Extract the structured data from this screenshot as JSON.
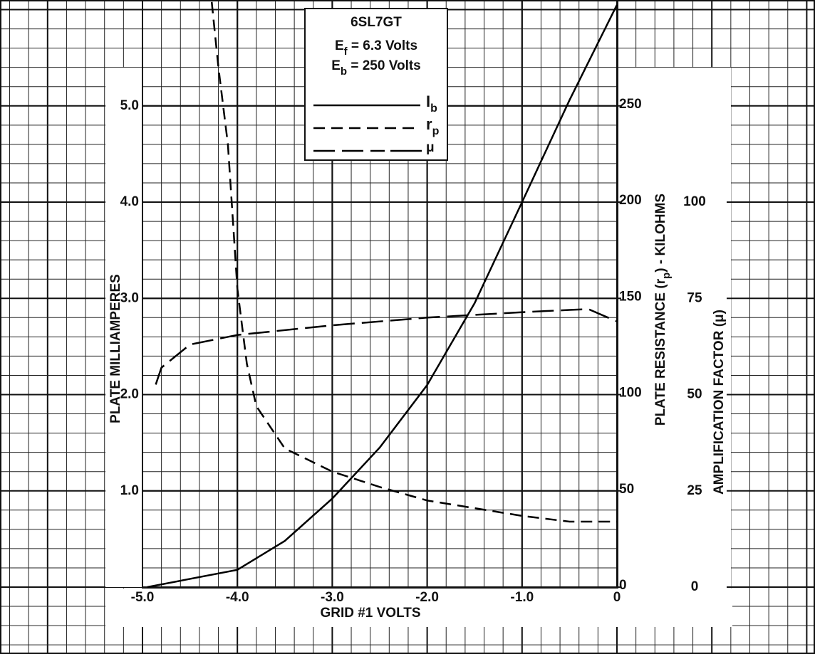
{
  "chart_data": {
    "type": "line",
    "title": "6SL7GT",
    "subtitle": [
      {
        "text": "E",
        "sub": "f",
        "rest": " = 6.3 Volts"
      },
      {
        "text": "E",
        "sub": "b",
        "rest": " = 250 Volts"
      }
    ],
    "x_label": "GRID #1 VOLTS",
    "y_label": "PLATE MILLIAMPERES",
    "y2_label": {
      "text": "PLATE RESISTANCE (r",
      "sub": "p",
      "rest": ") - KILOHMS"
    },
    "y3_label": "AMPLIFICATION FACTOR (μ)",
    "xlim": [
      -5,
      0
    ],
    "xticks": [
      {
        "value": -5,
        "label": "-5.0"
      },
      {
        "value": -4,
        "label": "-4.0"
      },
      {
        "value": -3,
        "label": "-3.0"
      },
      {
        "value": -2,
        "label": "-2.0"
      },
      {
        "value": -1,
        "label": "-1.0"
      },
      0
    ],
    "ylim": [
      0,
      6.1
    ],
    "yticks": [
      {
        "value": 1,
        "label": "1.0"
      },
      {
        "value": 2,
        "label": "2.0"
      },
      {
        "value": 3,
        "label": "3.0"
      },
      {
        "value": 4,
        "label": "4.0"
      },
      {
        "value": 5,
        "label": "5.0"
      }
    ],
    "y2lim": [
      0,
      305
    ],
    "y2ticks": [
      0,
      50,
      100,
      150,
      200,
      250
    ],
    "y3lim": [
      0,
      152.5
    ],
    "y3ticks": [
      0,
      25,
      50,
      75,
      100
    ],
    "grid": true,
    "series": [
      {
        "name": "Ib",
        "color": "#000000",
        "axis": "y",
        "x": [
          -4.95,
          -4.0,
          -3.5,
          -3.0,
          -2.5,
          -2.0,
          -1.5,
          -1.0,
          -0.5,
          0
        ],
        "values": [
          0.0,
          0.18,
          0.48,
          0.92,
          1.45,
          2.1,
          2.95,
          4.0,
          5.06,
          6.05
        ]
      },
      {
        "name": "rp",
        "color": "#000000",
        "axis": "y2",
        "x": [
          -4.27,
          -4.2,
          -4.1,
          -4.0,
          -3.9,
          -3.8,
          -3.5,
          -3.0,
          -2.5,
          -2.0,
          -1.5,
          -1.0,
          -0.5,
          0
        ],
        "values": [
          304,
          270,
          230,
          155,
          116,
          94,
          72,
          60,
          52,
          45,
          41,
          37,
          34,
          34
        ]
      },
      {
        "name": "μ",
        "color": "#000000",
        "axis": "y3",
        "x": [
          -4.86,
          -4.8,
          -4.5,
          -4.0,
          -3.0,
          -2.0,
          -1.0,
          -0.5,
          -0.3,
          0
        ],
        "values": [
          52.6,
          57,
          63,
          65.5,
          68,
          70,
          71.4,
          72,
          72.2,
          69
        ]
      }
    ]
  }
}
